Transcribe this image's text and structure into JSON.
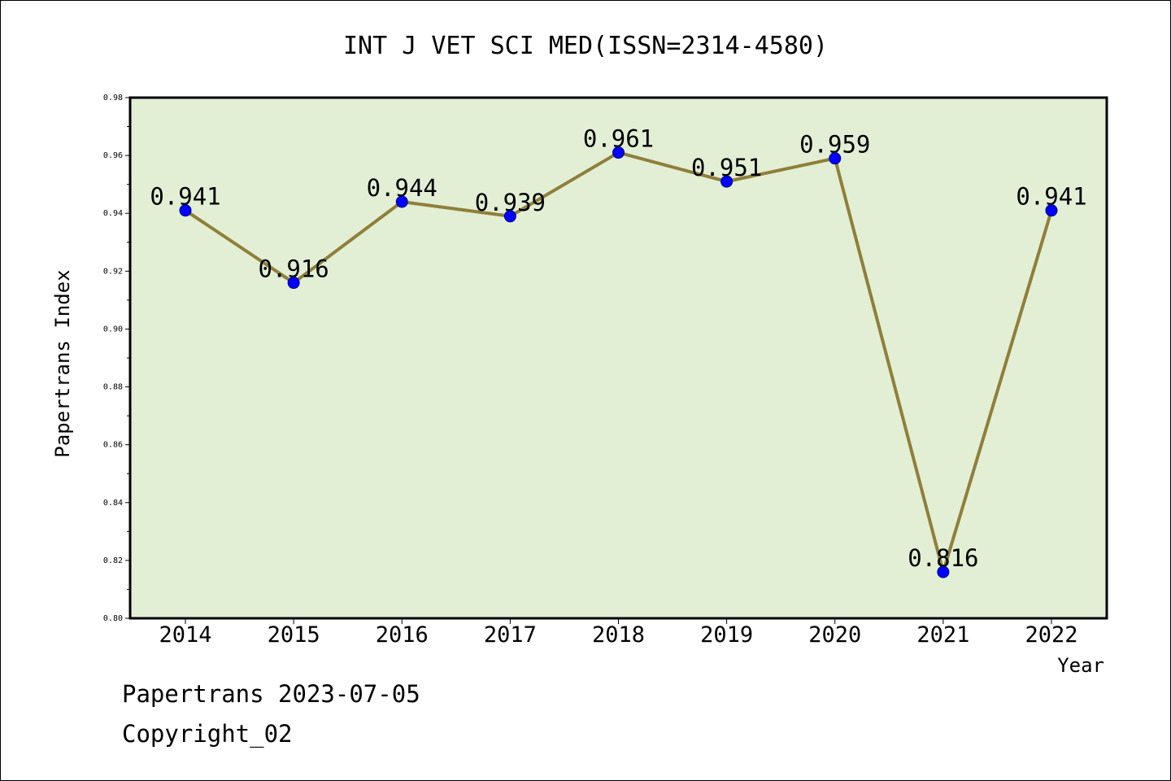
{
  "chart_data": {
    "type": "line",
    "title": "INT J VET SCI MED(ISSN=2314-4580)",
    "xlabel": "Year",
    "ylabel": "Papertrans Index",
    "categories": [
      "2014",
      "2015",
      "2016",
      "2017",
      "2018",
      "2019",
      "2020",
      "2021",
      "2022"
    ],
    "series": [
      {
        "values": [
          0.941,
          0.916,
          0.944,
          0.939,
          0.961,
          0.951,
          0.959,
          0.816,
          0.941
        ],
        "labels": [
          "0.941",
          "0.916",
          "0.944",
          "0.939",
          "0.961",
          "0.951",
          "0.959",
          "0.816",
          "0.941"
        ]
      }
    ],
    "ylim": [
      0.8,
      0.98
    ],
    "yticks": [
      "0.80",
      "0.82",
      "0.84",
      "0.86",
      "0.88",
      "0.90",
      "0.92",
      "0.94",
      "0.96",
      "0.98"
    ],
    "grid": false,
    "legend": "none",
    "colors": {
      "plot_background": "#e2efd5",
      "line": "#8f7f3a",
      "marker": "#0000ff",
      "marker_edge": "#00007a"
    }
  },
  "footer": {
    "line1": "Papertrans 2023-07-05",
    "line2": "Copyright_02"
  }
}
